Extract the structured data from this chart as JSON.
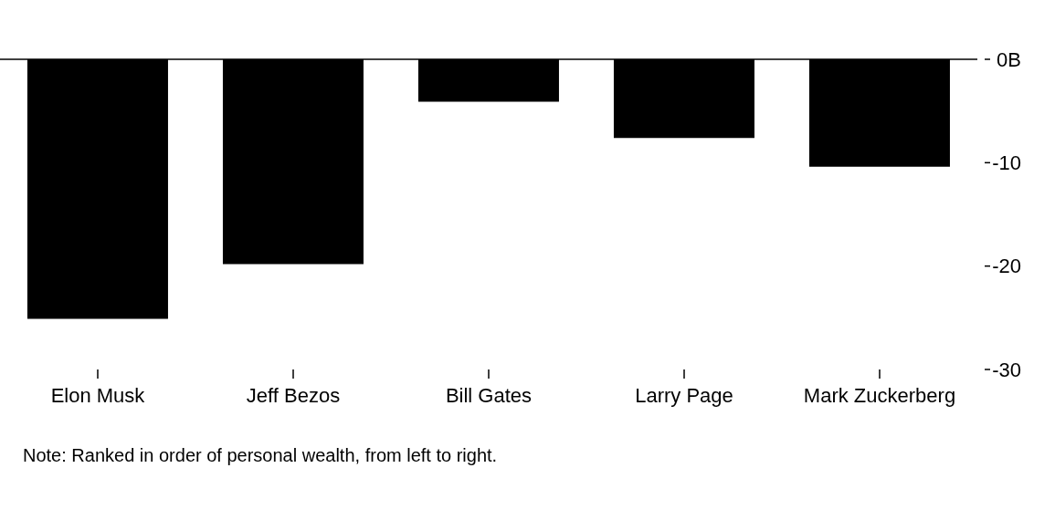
{
  "chart_data": {
    "type": "bar",
    "categories": [
      "Elon Musk",
      "Jeff Bezos",
      "Bill Gates",
      "Larry Page",
      "Mark Zuckerberg"
    ],
    "values": [
      -25.1,
      -19.8,
      -4.1,
      -7.6,
      -10.4
    ],
    "color": "#000000",
    "ylim": [
      -30,
      0
    ],
    "yticks": [
      {
        "value": 0,
        "label": "0B"
      },
      -10,
      -20,
      -30
    ],
    "ref_lines": [
      {
        "axis": "y",
        "value": 0,
        "color": "#000000"
      }
    ],
    "grid": false,
    "legend": false,
    "annotations": [
      "Note: Ranked in order of personal wealth, from left to right."
    ]
  }
}
